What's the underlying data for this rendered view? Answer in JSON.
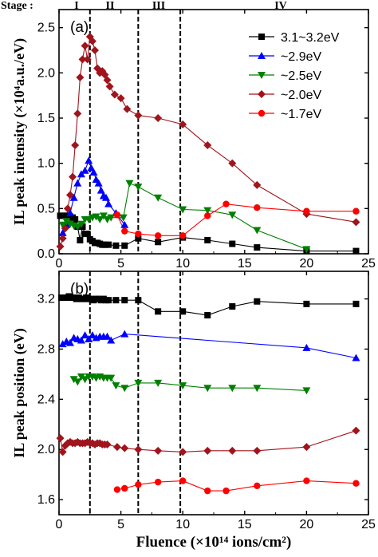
{
  "stage_label": "Stage :",
  "stages": [
    "I",
    "II",
    "III",
    "IV"
  ],
  "xlabel": "Fluence (×10¹⁴ ions/cm²)",
  "series_styles": [
    {
      "name": "3.1~3.2eV",
      "color": "#000000",
      "marker": "square"
    },
    {
      "name": "~2.9eV",
      "color": "#0000ff",
      "marker": "triangle-up"
    },
    {
      "name": "~2.5eV",
      "color": "#008000",
      "marker": "triangle-down"
    },
    {
      "name": "~2.0eV",
      "color": "#a0141c",
      "marker": "diamond"
    },
    {
      "name": "~1.7eV",
      "color": "#ff0000",
      "marker": "circle"
    }
  ],
  "chart_data": [
    {
      "type": "line",
      "panel": "(a)",
      "ylabel": "IL peak intensity (×10⁴a.u./eV)",
      "xlim": [
        0,
        25
      ],
      "ylim": [
        0,
        2.7
      ],
      "xticks": [
        0,
        5,
        10,
        15,
        20,
        25
      ],
      "yticks": [
        0.0,
        0.5,
        1.0,
        1.5,
        2.0,
        2.5
      ],
      "ytick_labels": [
        "0.0",
        "0.5",
        "1.0",
        "1.5",
        "2.0",
        "2.5"
      ],
      "vlines": [
        2.5,
        6.4,
        9.8
      ],
      "legend": "top-right",
      "series": [
        {
          "name": "3.1~3.2eV",
          "x": [
            0.1,
            0.3,
            0.5,
            0.7,
            0.9,
            1.1,
            1.3,
            1.5,
            1.7,
            1.9,
            2.1,
            2.3,
            2.5,
            2.7,
            2.9,
            3.1,
            3.3,
            3.5,
            3.7,
            4.0,
            4.6,
            5.3,
            6.4,
            8,
            10,
            12,
            14,
            16,
            20,
            24
          ],
          "y": [
            0.42,
            0.42,
            0.42,
            0.42,
            0.41,
            0.4,
            0.38,
            0.3,
            0.15,
            0.3,
            0.22,
            0.22,
            0.16,
            0.14,
            0.12,
            0.12,
            0.11,
            0.1,
            0.1,
            0.1,
            0.09,
            0.09,
            0.17,
            0.13,
            0.18,
            0.15,
            0.11,
            0.07,
            0.03,
            0.03
          ]
        },
        {
          "name": "~2.9eV",
          "x": [
            0.3,
            0.6,
            0.9,
            1.2,
            1.5,
            1.8,
            2.1,
            2.4,
            2.6,
            2.8,
            3.0,
            3.2,
            3.4,
            3.6,
            3.8,
            4.0,
            4.6,
            5.3
          ],
          "y": [
            0.23,
            0.32,
            0.45,
            0.62,
            0.78,
            0.88,
            0.92,
            1.03,
            0.95,
            0.9,
            0.82,
            0.78,
            0.7,
            0.64,
            0.62,
            0.55,
            0.45,
            0.32
          ]
        },
        {
          "name": "~2.5eV",
          "x": [
            0.3,
            0.6,
            0.9,
            1.2,
            1.5,
            1.8,
            2.1,
            2.4,
            2.7,
            3.0,
            3.3,
            3.6,
            3.9,
            4.2,
            5.2,
            5.7,
            6.4,
            8,
            10,
            12,
            14,
            16,
            20
          ],
          "y": [
            0.32,
            0.36,
            0.33,
            0.31,
            0.3,
            0.33,
            0.38,
            0.38,
            0.4,
            0.41,
            0.38,
            0.42,
            0.38,
            0.4,
            0.4,
            0.78,
            0.74,
            0.62,
            0.49,
            0.48,
            0.43,
            0.26,
            0.05
          ]
        },
        {
          "name": "~2.0eV",
          "x": [
            0.1,
            0.3,
            0.5,
            0.7,
            0.9,
            1.1,
            1.3,
            1.5,
            1.7,
            1.9,
            2.1,
            2.3,
            2.5,
            2.7,
            2.9,
            3.1,
            3.3,
            3.5,
            3.7,
            3.9,
            4.1,
            4.5,
            5.0,
            5.5,
            6.4,
            8,
            10,
            12,
            14,
            16,
            20,
            24
          ],
          "y": [
            0.08,
            0.17,
            0.28,
            0.5,
            0.65,
            0.85,
            1.2,
            1.55,
            1.95,
            2.15,
            2.3,
            2.15,
            2.4,
            2.35,
            2.25,
            2.05,
            2.0,
            2.02,
            1.98,
            1.92,
            1.85,
            1.76,
            1.72,
            1.6,
            1.53,
            1.5,
            1.43,
            1.2,
            1.0,
            0.76,
            0.44,
            0.35
          ]
        },
        {
          "name": "~1.7eV",
          "x": [
            4.7,
            5.3,
            6.4,
            8,
            10,
            12,
            13.5,
            16,
            20,
            24
          ],
          "y": [
            0.43,
            0.25,
            0.22,
            0.2,
            0.2,
            0.42,
            0.55,
            0.51,
            0.47,
            0.47
          ]
        }
      ]
    },
    {
      "type": "line",
      "panel": "(b)",
      "ylabel": "IL peak position (eV)",
      "xlim": [
        0,
        25
      ],
      "ylim": [
        1.48,
        3.42
      ],
      "xticks": [
        0,
        5,
        10,
        15,
        20,
        25
      ],
      "yticks": [
        1.6,
        2.0,
        2.4,
        2.8,
        3.2
      ],
      "ytick_labels": [
        "1.6",
        "2.0",
        "2.4",
        "2.8",
        "3.2"
      ],
      "vlines": [
        2.5,
        6.4,
        9.8
      ],
      "series": [
        {
          "name": "3.1~3.2eV",
          "x": [
            0.2,
            0.4,
            0.6,
            0.8,
            1.0,
            1.2,
            1.4,
            1.6,
            1.8,
            2.0,
            2.2,
            2.4,
            2.6,
            2.8,
            3.0,
            3.2,
            3.4,
            3.6,
            3.8,
            4.0,
            4.6,
            5.3,
            6.4,
            8,
            10,
            12,
            14,
            16,
            20,
            24
          ],
          "y": [
            3.21,
            3.21,
            3.21,
            3.22,
            3.21,
            3.21,
            3.2,
            3.21,
            3.2,
            3.2,
            3.21,
            3.2,
            3.2,
            3.19,
            3.2,
            3.2,
            3.19,
            3.2,
            3.19,
            3.19,
            3.19,
            3.19,
            3.19,
            3.1,
            3.1,
            3.07,
            3.14,
            3.18,
            3.16,
            3.16
          ]
        },
        {
          "name": "~2.9eV",
          "x": [
            0.3,
            0.6,
            0.9,
            1.2,
            1.5,
            1.8,
            2.1,
            2.4,
            2.7,
            3.0,
            3.3,
            3.6,
            3.9,
            4.2,
            5.3,
            20,
            24
          ],
          "y": [
            2.84,
            2.86,
            2.85,
            2.89,
            2.88,
            2.87,
            2.91,
            2.88,
            2.91,
            2.89,
            2.9,
            2.9,
            2.9,
            2.87,
            2.92,
            2.81,
            2.73
          ]
        },
        {
          "name": "~2.5eV",
          "x": [
            1.2,
            1.5,
            1.8,
            2.1,
            2.4,
            2.7,
            3.0,
            3.3,
            3.6,
            3.9,
            4.2,
            4.6,
            5.3,
            6.4,
            8,
            10,
            12,
            14,
            16,
            20
          ],
          "y": [
            2.56,
            2.54,
            2.58,
            2.56,
            2.58,
            2.58,
            2.57,
            2.58,
            2.57,
            2.57,
            2.57,
            2.51,
            2.49,
            2.53,
            2.53,
            2.51,
            2.49,
            2.49,
            2.49,
            2.47
          ]
        },
        {
          "name": "~2.0eV",
          "x": [
            0.1,
            0.3,
            0.5,
            0.7,
            0.9,
            1.1,
            1.3,
            1.5,
            1.7,
            1.9,
            2.1,
            2.3,
            2.5,
            2.7,
            2.9,
            3.1,
            3.3,
            3.5,
            3.7,
            3.9,
            4.7,
            5.3,
            6.4,
            8,
            10,
            12,
            14,
            16,
            20,
            24
          ],
          "y": [
            2.09,
            1.98,
            2.03,
            2.05,
            2.06,
            2.05,
            2.05,
            2.06,
            2.05,
            2.05,
            2.05,
            2.06,
            2.05,
            2.05,
            2.04,
            2.05,
            2.05,
            2.04,
            2.04,
            2.04,
            2.02,
            2.01,
            2.0,
            1.99,
            1.98,
            1.99,
            1.99,
            1.99,
            2.02,
            2.15
          ]
        },
        {
          "name": "~1.7eV",
          "x": [
            4.7,
            5.3,
            6.4,
            8,
            10,
            12,
            13.5,
            16,
            20,
            24
          ],
          "y": [
            1.68,
            1.69,
            1.72,
            1.74,
            1.75,
            1.67,
            1.67,
            1.71,
            1.75,
            1.73
          ]
        }
      ]
    }
  ]
}
